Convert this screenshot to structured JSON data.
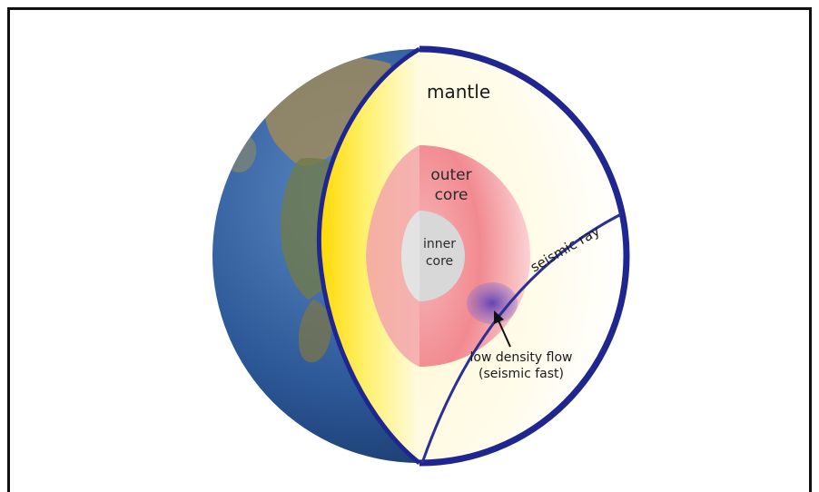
{
  "diagram": {
    "labels": {
      "mantle": "mantle",
      "outer_core_line1": "outer",
      "outer_core_line2": "core",
      "inner_core_line1": "inner",
      "inner_core_line2": "core",
      "seismic_ray": "seismic ray",
      "flow_line1": "low density flow",
      "flow_line2": "(seismic fast)"
    },
    "colors": {
      "frame": "#111111",
      "shell": "#1f2690",
      "ray": "#2a3096",
      "mantle_light": "#fffbe3",
      "mantle_yellow": "#ffe600",
      "outer_core": "#f07c82",
      "inner_core": "#d6d6d6",
      "flow": "#6b4fb8",
      "ocean": "#2f5f9e",
      "land": "#8a7a55"
    }
  }
}
